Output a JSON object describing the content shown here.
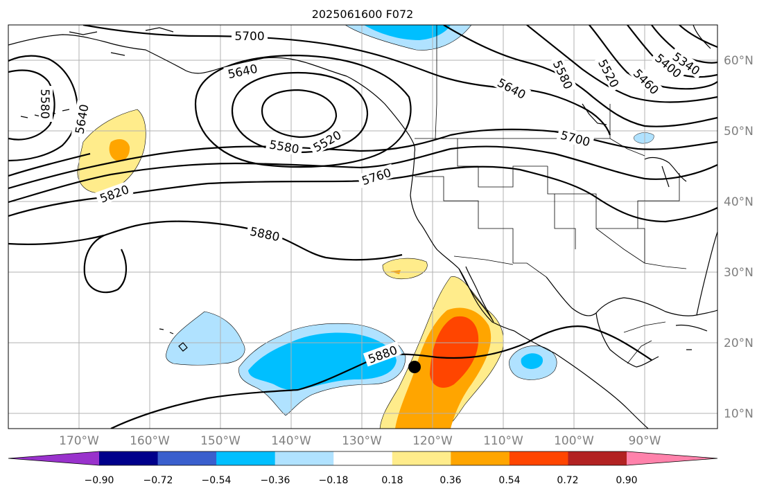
{
  "title": "2025061600 F072",
  "lat_labels": [
    "60°N",
    "50°N",
    "40°N",
    "30°N",
    "20°N",
    "10°N"
  ],
  "lon_labels": [
    "170°W",
    "160°W",
    "150°W",
    "140°W",
    "130°W",
    "120°W",
    "110°W",
    "100°W",
    "90°W"
  ],
  "contour_labels": [
    {
      "id": "c5700a",
      "text": "5700"
    },
    {
      "id": "c5640a",
      "text": "5640"
    },
    {
      "id": "c5580a",
      "text": "5580"
    },
    {
      "id": "c5520a",
      "text": "5520"
    },
    {
      "id": "c5580b",
      "text": "5580"
    },
    {
      "id": "c5640b",
      "text": "5640"
    },
    {
      "id": "c5820",
      "text": "5820"
    },
    {
      "id": "c5760",
      "text": "5760"
    },
    {
      "id": "c5880a",
      "text": "5880"
    },
    {
      "id": "c5880b",
      "text": "5880"
    },
    {
      "id": "c5640c",
      "text": "5640"
    },
    {
      "id": "c5580c",
      "text": "5580"
    },
    {
      "id": "c5520b",
      "text": "5520"
    },
    {
      "id": "c5460",
      "text": "5460"
    },
    {
      "id": "c5400",
      "text": "5400"
    },
    {
      "id": "c5340",
      "text": "5340"
    },
    {
      "id": "c5700b",
      "text": "5700"
    }
  ],
  "colorbar": {
    "colors": [
      "#9932cc",
      "#00008b",
      "#3a5fcd",
      "#00bfff",
      "#b0e2ff",
      "#ffffff",
      "#ffec8b",
      "#ffa500",
      "#ff4500",
      "#b22222",
      "#ff82ab"
    ],
    "tick_labels": [
      "−0.90",
      "−0.72",
      "−0.54",
      "−0.36",
      "−0.18",
      "0.18",
      "0.36",
      "0.54",
      "0.72",
      "0.90"
    ]
  },
  "colors": {
    "light_blue": "#b0e2ff",
    "deep_sky_blue": "#00bfff",
    "light_yellow": "#ffec8b",
    "orange": "#ffa500",
    "red_orange": "#ff4500",
    "grid": "#b0b0b0",
    "label_gray": "#7f7f7f"
  }
}
